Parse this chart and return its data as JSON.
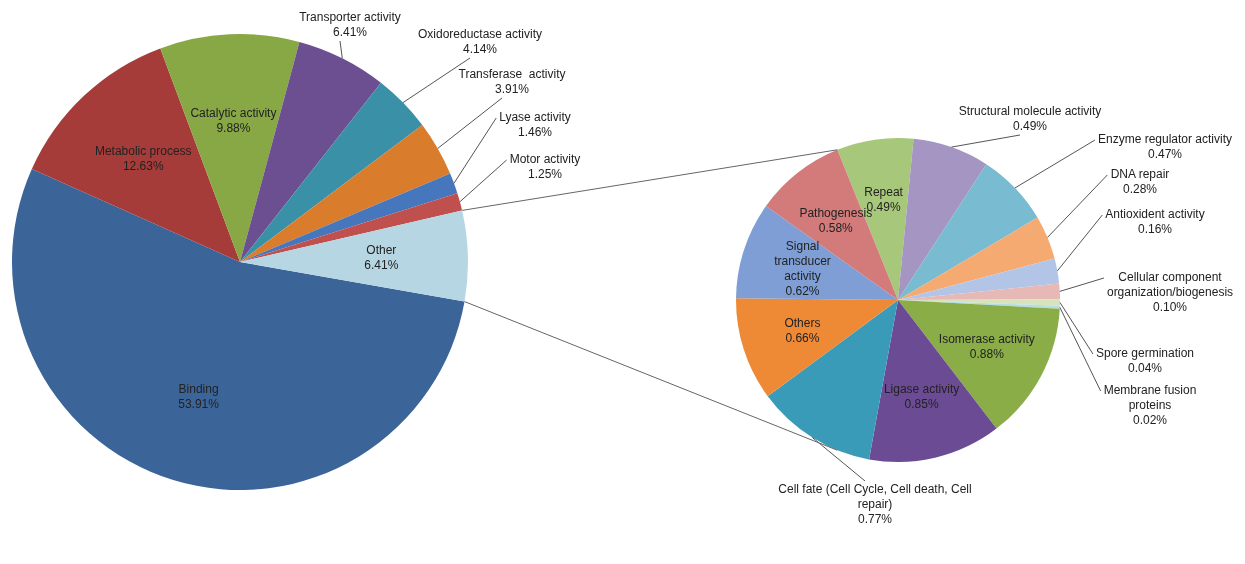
{
  "chart_data": [
    {
      "type": "pie",
      "categories": [
        "Binding",
        "Metabolic process",
        "Catalytic activity",
        "Transporter activity",
        "Oxidoreductase activity",
        "Transferase  activity",
        "Lyase activity",
        "Motor activity",
        "Other"
      ],
      "values": [
        53.91,
        12.63,
        9.88,
        6.41,
        4.14,
        3.91,
        1.46,
        1.25,
        6.41
      ],
      "value_labels": [
        "53.91%",
        "12.63%",
        "9.88%",
        "6.41%",
        "4.14%",
        "3.91%",
        "1.46%",
        "1.25%",
        "6.41%"
      ],
      "colors": [
        "#3b6598",
        "#a53c3a",
        "#88a845",
        "#6b4f91",
        "#3a91a7",
        "#d97c2b",
        "#4676bb",
        "#c0504d",
        "#b7d6e3"
      ]
    },
    {
      "type": "pie",
      "categories": [
        "Repeat",
        "Structural molecule activity",
        "Enzyme regulator activity",
        "DNA repair",
        "Antioxident activity",
        "Cellular component organization/biogenesis",
        "Spore germination",
        "Membrane fusion proteins",
        "Isomerase activity",
        "Ligase activity",
        "Cell fate (Cell Cycle, Cell death, Cell repair)",
        "Others",
        "Signal transducer activity",
        "Pathogenesis"
      ],
      "values": [
        0.49,
        0.49,
        0.47,
        0.28,
        0.16,
        0.1,
        0.04,
        0.02,
        0.88,
        0.85,
        0.77,
        0.66,
        0.62,
        0.58
      ],
      "value_labels": [
        "0.49%",
        "0.49%",
        "0.47%",
        "0.28%",
        "0.16%",
        "0.10%",
        "0.04%",
        "0.02%",
        "0.88%",
        "0.85%",
        "0.77%",
        "0.66%",
        "0.62%",
        "0.58%"
      ],
      "colors": [
        "#a7c87b",
        "#a595c3",
        "#79bbd1",
        "#f5aa72",
        "#b3c5e6",
        "#e6b8b6",
        "#d6e3bc",
        "#b5dde6",
        "#8aad47",
        "#6c4b95",
        "#3a9bb8",
        "#ee8a35",
        "#7e9ed5",
        "#d27b7a"
      ]
    }
  ]
}
